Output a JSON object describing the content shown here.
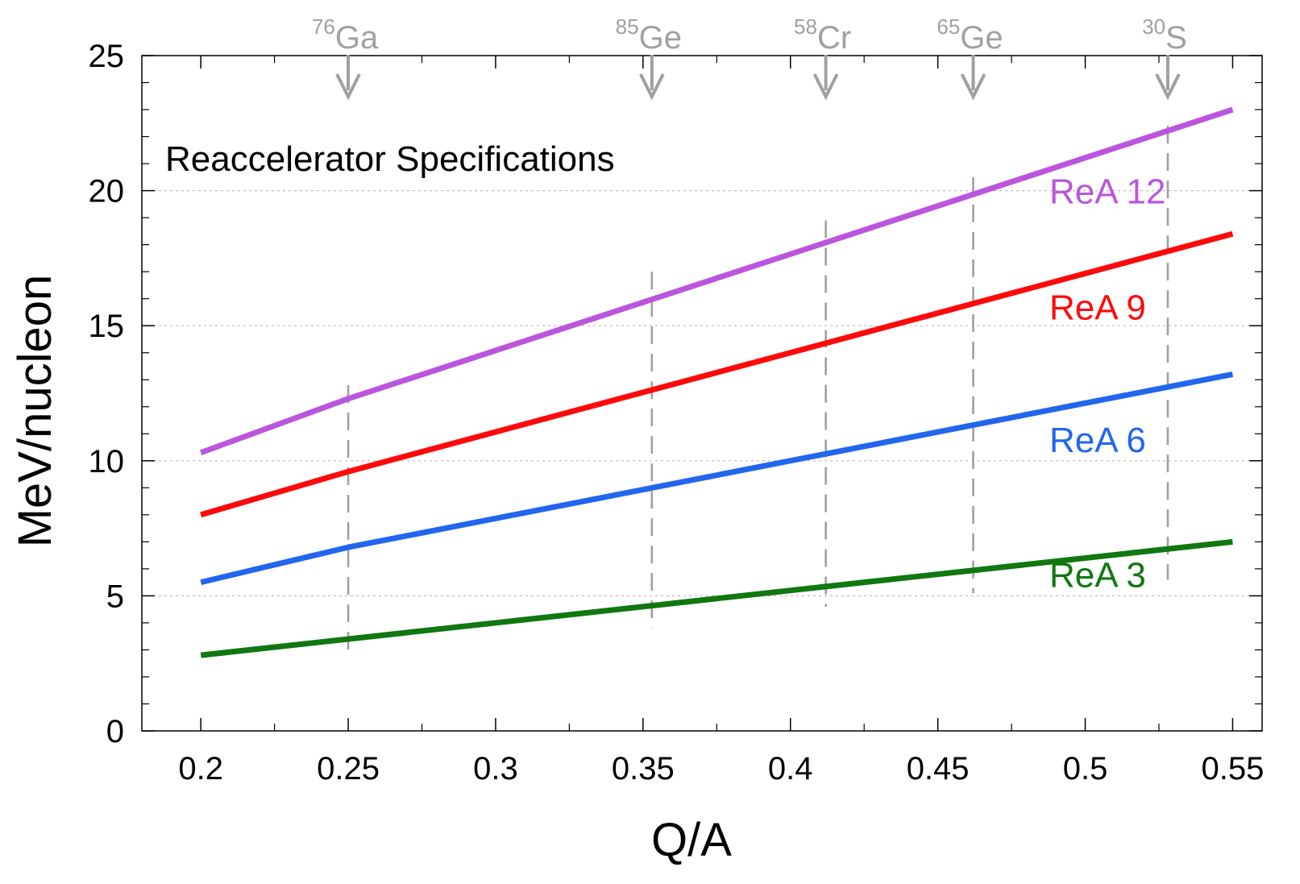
{
  "chart_data": {
    "type": "line",
    "title": "Reaccelerator Specifications",
    "xlabel": "Q/A",
    "ylabel": "MeV/nucleon",
    "xlim": [
      0.18,
      0.56
    ],
    "ylim": [
      0,
      25
    ],
    "x_ticks": [
      0.2,
      0.25,
      0.3,
      0.35,
      0.4,
      0.45,
      0.5,
      0.55
    ],
    "x_tick_labels": [
      "0.2",
      "0.25",
      "0.3",
      "0.35",
      "0.4",
      "0.45",
      "0.5",
      "0.55"
    ],
    "x_minor_ticks": [
      0.225,
      0.275,
      0.325,
      0.375,
      0.425,
      0.475,
      0.525
    ],
    "y_ticks": [
      0,
      5,
      10,
      15,
      20,
      25
    ],
    "y_tick_labels": [
      "0",
      "5",
      "10",
      "15",
      "20",
      "25"
    ],
    "y_minor_ticks": [
      1,
      2,
      3,
      4,
      6,
      7,
      8,
      9,
      11,
      12,
      13,
      14,
      16,
      17,
      18,
      19,
      21,
      22,
      23,
      24
    ],
    "grid": "horizontal dotted at major y ticks",
    "series": [
      {
        "name": "ReA 12",
        "color": "#bb55dd",
        "x": [
          0.2,
          0.25,
          0.55
        ],
        "y": [
          10.3,
          12.3,
          23.0
        ]
      },
      {
        "name": "ReA 9",
        "color": "#ff0a0a",
        "x": [
          0.2,
          0.25,
          0.55
        ],
        "y": [
          8.0,
          9.6,
          18.4
        ]
      },
      {
        "name": "ReA 6",
        "color": "#2266ee",
        "x": [
          0.2,
          0.25,
          0.55
        ],
        "y": [
          5.5,
          6.8,
          13.2
        ]
      },
      {
        "name": "ReA 3",
        "color": "#117711",
        "x": [
          0.2,
          0.55
        ],
        "y": [
          2.8,
          7.0
        ]
      }
    ],
    "series_label_y": [
      20,
      15.7,
      10.8,
      5.8
    ],
    "isotope_markers": [
      {
        "mass": "76",
        "symbol": "Ga",
        "x": 0.25,
        "y_range": [
          2.8,
          12.8
        ]
      },
      {
        "mass": "85",
        "symbol": "Ge",
        "x": 0.353,
        "y_range": [
          3.8,
          17.0
        ]
      },
      {
        "mass": "58",
        "symbol": "Cr",
        "x": 0.412,
        "y_range": [
          4.6,
          18.9
        ]
      },
      {
        "mass": "65",
        "symbol": "Ge",
        "x": 0.462,
        "y_range": [
          5.1,
          20.5
        ]
      },
      {
        "mass": "30",
        "symbol": "S",
        "x": 0.528,
        "y_range": [
          5.6,
          22.4
        ]
      }
    ],
    "colors": {
      "marker": "#a0a0a0",
      "grid": "#bbbbbb",
      "axis": "#000000"
    }
  }
}
